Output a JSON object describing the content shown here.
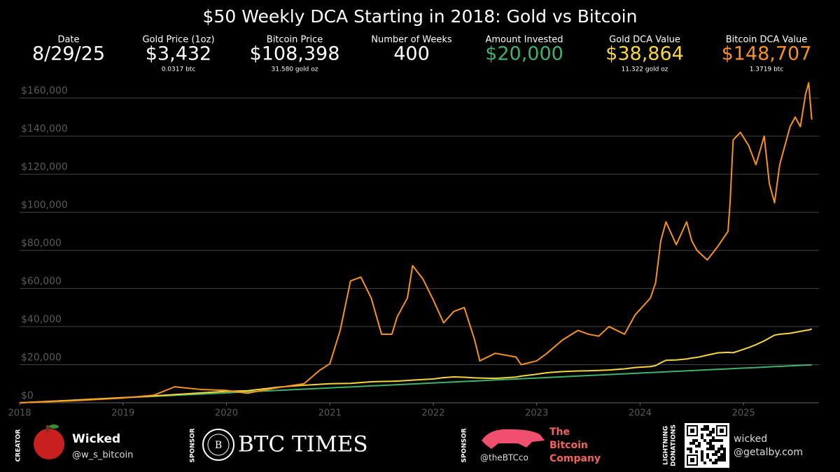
{
  "header": {
    "stats": [
      {
        "label": "Date",
        "value": "8/29/25",
        "color": "#ffffff"
      },
      {
        "label": "Gold Price (1oz)",
        "value": "$3,432",
        "sub": "0.0317 btc",
        "color": "#ffffff"
      },
      {
        "label": "Bitcoin Price",
        "value": "$108,398",
        "sub": "31.580 gold oz",
        "color": "#ffffff"
      },
      {
        "label": "Number of Weeks",
        "value": "400",
        "color": "#ffffff"
      },
      {
        "label": "Amount Invested",
        "value": "$20,000",
        "color": "#3cb36b"
      },
      {
        "label": "Gold DCA Value",
        "value": "$38,864",
        "sub": "11.322 gold oz",
        "color": "#f7d63c"
      },
      {
        "label": "Bitcoin DCA Value",
        "value": "$148,707",
        "sub": "1.3719 btc",
        "color": "#f7931a"
      }
    ]
  },
  "chart_data": {
    "type": "line",
    "title": "$50 Weekly DCA Starting in 2018: Gold vs Bitcoin",
    "x": [
      2018,
      2018.5,
      2019,
      2019.3,
      2019.5,
      2019.75,
      2020,
      2020.2,
      2020.5,
      2020.75,
      2020.9,
      2021,
      2021.1,
      2021.2,
      2021.3,
      2021.4,
      2021.5,
      2021.6,
      2021.65,
      2021.75,
      2021.8,
      2021.9,
      2022,
      2022.1,
      2022.2,
      2022.3,
      2022.4,
      2022.45,
      2022.6,
      2022.8,
      2022.85,
      2023,
      2023.1,
      2023.25,
      2023.4,
      2023.5,
      2023.6,
      2023.7,
      2023.85,
      2023.95,
      2024.1,
      2024.15,
      2024.2,
      2024.25,
      2024.35,
      2024.45,
      2024.5,
      2024.55,
      2024.65,
      2024.75,
      2024.85,
      2024.87,
      2024.9,
      2024.97,
      2025.05,
      2025.12,
      2025.2,
      2025.25,
      2025.3,
      2025.35,
      2025.45,
      2025.5,
      2025.55,
      2025.6,
      2025.63,
      2025.65,
      2025.66
    ],
    "series": [
      {
        "color": "#3cb36b",
        "values": [
          0,
          1300,
          2600,
          3380,
          3900,
          4550,
          5200,
          5720,
          6500,
          7150,
          7540,
          7800,
          8060,
          8320,
          8580,
          8840,
          9100,
          9360,
          9490,
          9750,
          9880,
          10140,
          10400,
          10660,
          10920,
          11180,
          11440,
          11570,
          11960,
          12480,
          12610,
          13000,
          13260,
          13650,
          14040,
          14300,
          14560,
          14820,
          15210,
          15470,
          15860,
          15990,
          16120,
          16250,
          16510,
          16770,
          16900,
          17030,
          17290,
          17550,
          17810,
          17862,
          17940,
          18122,
          18330,
          18512,
          18720,
          18850,
          18980,
          19110,
          19370,
          19500,
          19630,
          19760,
          19838,
          19890,
          20000
        ]
      },
      {
        "color": "#f7d63c",
        "values": [
          0,
          1300,
          2700,
          3600,
          4300,
          5200,
          6000,
          6300,
          8200,
          9200,
          9700,
          10000,
          10100,
          10200,
          10600,
          11000,
          11200,
          11300,
          11400,
          11700,
          11900,
          12200,
          12500,
          13200,
          13600,
          13400,
          13100,
          13000,
          12800,
          13500,
          14000,
          15000,
          15800,
          16400,
          16700,
          16800,
          17000,
          17200,
          17800,
          18500,
          19000,
          19500,
          21000,
          22300,
          22500,
          23000,
          23500,
          23800,
          25000,
          26200,
          26500,
          26400,
          26300,
          27500,
          29000,
          30500,
          32500,
          34000,
          35500,
          36000,
          36500,
          37000,
          37500,
          38000,
          38200,
          38500,
          38864
        ]
      },
      {
        "color": "#f7931a",
        "values": [
          0,
          1000,
          2500,
          4000,
          8400,
          7000,
          6500,
          5000,
          8000,
          10000,
          17000,
          20500,
          38000,
          64000,
          66000,
          55000,
          36000,
          36000,
          45000,
          55000,
          72000,
          65000,
          54000,
          42000,
          48000,
          50000,
          33000,
          22000,
          26000,
          24000,
          20000,
          22000,
          26000,
          33000,
          38000,
          36000,
          35000,
          40000,
          36000,
          46000,
          55000,
          63000,
          85000,
          95000,
          83000,
          95000,
          85000,
          80000,
          75000,
          82000,
          90000,
          105000,
          138000,
          142000,
          135000,
          125000,
          140000,
          115000,
          105000,
          125000,
          145000,
          150000,
          145000,
          162000,
          168000,
          155000,
          148707
        ]
      }
    ],
    "xlim": [
      2018,
      2025.73
    ],
    "xticks": [
      2018,
      2019,
      2020,
      2021,
      2022,
      2023,
      2024,
      2025
    ],
    "ylim": [
      0,
      170000
    ],
    "yticks": [
      {
        "value": 0,
        "label": "$0"
      },
      {
        "value": 20000,
        "label": "$20,000"
      },
      {
        "value": 40000,
        "label": "$40,000"
      },
      {
        "value": 60000,
        "label": "$60,000"
      },
      {
        "value": 80000,
        "label": "$80,000"
      },
      {
        "value": 100000,
        "label": "$100,000"
      },
      {
        "value": 120000,
        "label": "$120,000"
      },
      {
        "value": 140000,
        "label": "$140,000"
      },
      {
        "value": 160000,
        "label": "$160,000"
      }
    ],
    "grid": true
  },
  "footer": {
    "creator": {
      "tag": "CREATOR",
      "name": "Wicked",
      "handle": "@w_s_bitcoin"
    },
    "sponsor1": {
      "tag": "SPONSOR",
      "name": "BTC TIMES"
    },
    "sponsor2": {
      "tag": "SPONSOR",
      "handle": "@theBTCco",
      "name": [
        "The",
        "Bitcoin",
        "Company"
      ]
    },
    "donations": {
      "tag": [
        "LIGHTNING",
        "DONATIONS"
      ],
      "name": "wicked",
      "handle": "@getalby.com"
    }
  }
}
